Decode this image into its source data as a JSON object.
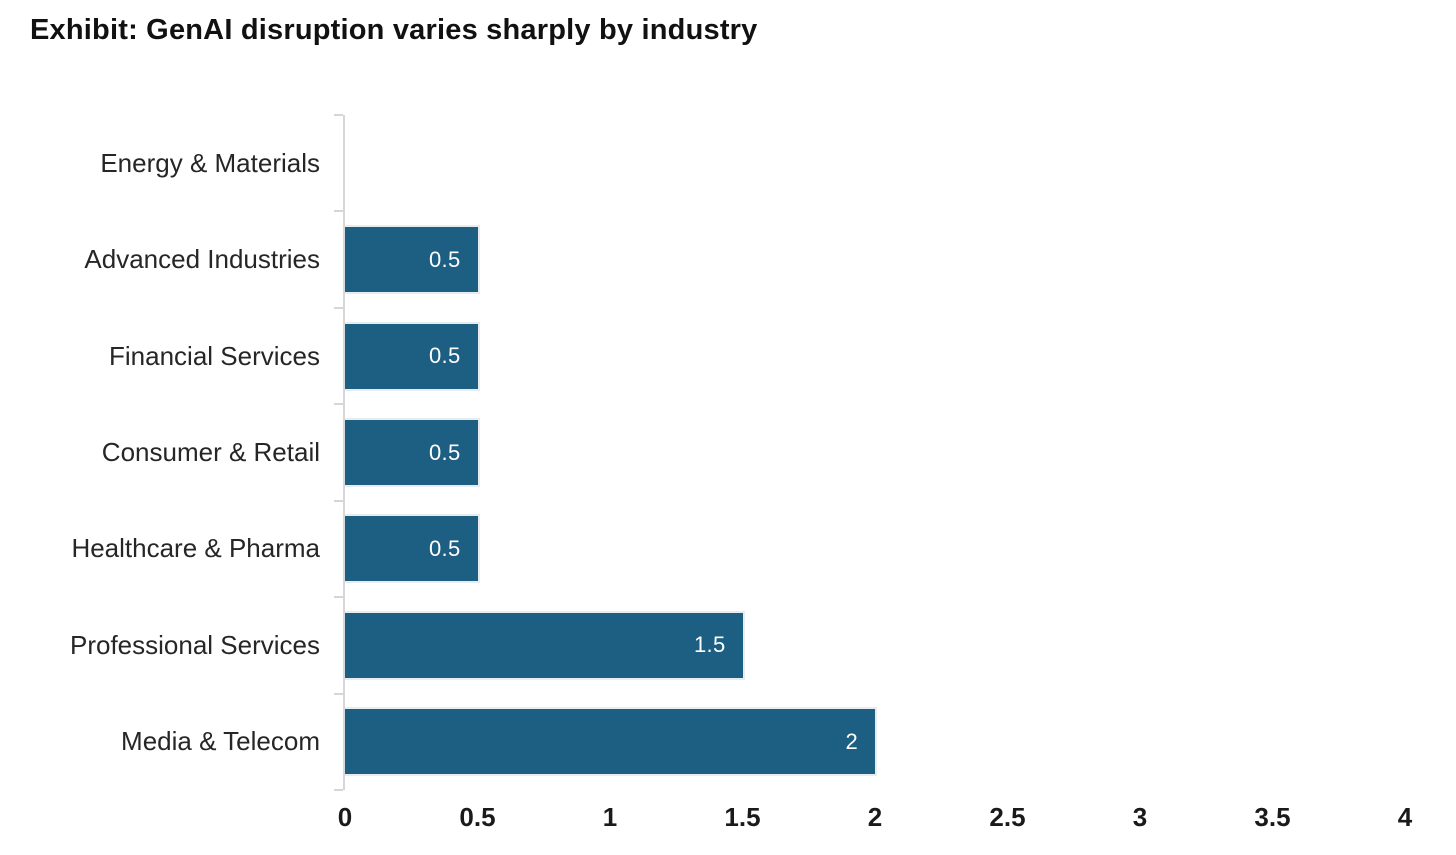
{
  "page": {
    "background": "#ffffff"
  },
  "chart_data": {
    "type": "bar",
    "orientation": "horizontal",
    "title": "Exhibit: GenAI disruption varies sharply by industry",
    "categories": [
      "Energy & Materials",
      "Advanced Industries",
      "Financial Services",
      "Consumer & Retail",
      "Healthcare & Pharma",
      "Professional Services",
      "Media & Telecom"
    ],
    "values": [
      0,
      0.5,
      0.5,
      0.5,
      0.5,
      1.5,
      2
    ],
    "value_labels": [
      "",
      "0.5",
      "0.5",
      "0.5",
      "0.5",
      "1.5",
      "2"
    ],
    "xlabel": "",
    "ylabel": "",
    "xlim": [
      0,
      4
    ],
    "x_ticks": [
      {
        "value": 0,
        "label": "0"
      },
      {
        "value": 0.5,
        "label": "0.5"
      },
      {
        "value": 1,
        "label": "1"
      },
      {
        "value": 1.5,
        "label": "1.5"
      },
      {
        "value": 2,
        "label": "2"
      },
      {
        "value": 2.5,
        "label": "2.5"
      },
      {
        "value": 3,
        "label": "3"
      },
      {
        "value": 3.5,
        "label": "3.5"
      },
      {
        "value": 4,
        "label": "4"
      }
    ],
    "grid": false,
    "legend": null,
    "value_labels_inside_bar": true,
    "colors": {
      "bar": "#1d5f82",
      "value_label": "#ffffff",
      "axis_line": "#d6d6d6",
      "title_text": "#111111",
      "category_text": "#262626",
      "tick_text": "#1a1a1a"
    }
  }
}
